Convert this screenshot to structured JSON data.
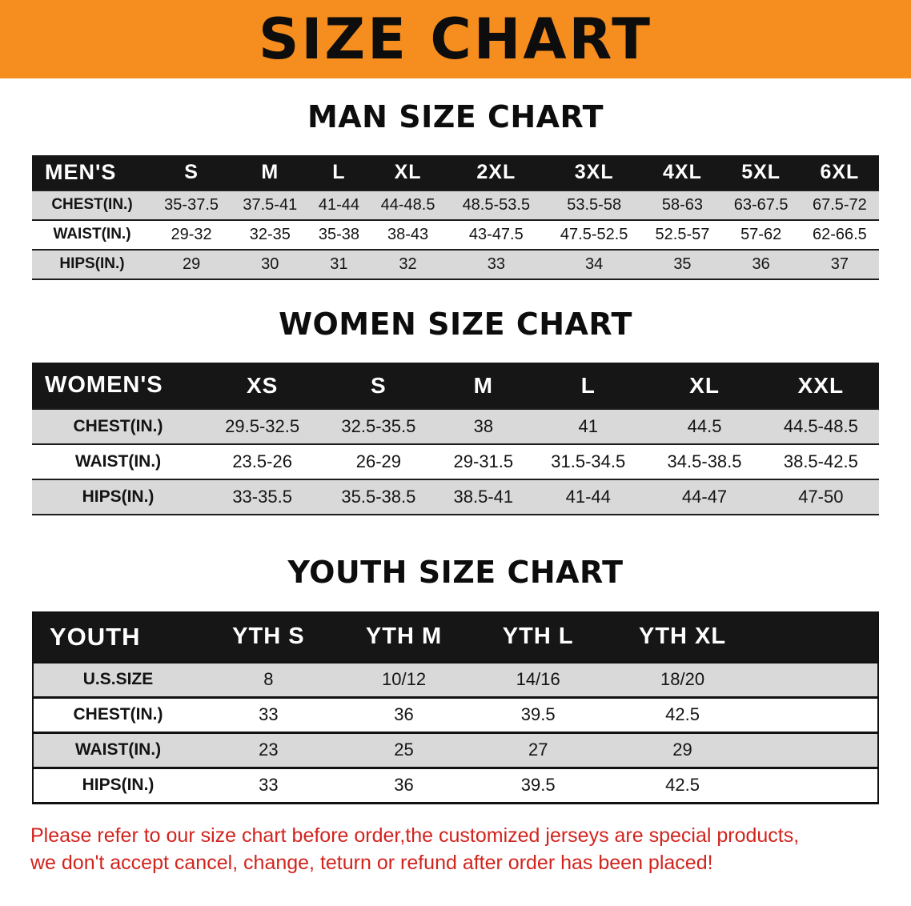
{
  "banner": {
    "title": "SIZE CHART"
  },
  "men": {
    "heading": "MAN SIZE CHART",
    "header": [
      "MEN'S",
      "S",
      "M",
      "L",
      "XL",
      "2XL",
      "3XL",
      "4XL",
      "5XL",
      "6XL"
    ],
    "rows": [
      [
        "CHEST(IN.)",
        "35-37.5",
        "37.5-41",
        "41-44",
        "44-48.5",
        "48.5-53.5",
        "53.5-58",
        "58-63",
        "63-67.5",
        "67.5-72"
      ],
      [
        "WAIST(IN.)",
        "29-32",
        "32-35",
        "35-38",
        "38-43",
        "43-47.5",
        "47.5-52.5",
        "52.5-57",
        "57-62",
        "62-66.5"
      ],
      [
        "HIPS(IN.)",
        "29",
        "30",
        "31",
        "32",
        "33",
        "34",
        "35",
        "36",
        "37"
      ]
    ]
  },
  "women": {
    "heading": "WOMEN SIZE CHART",
    "header": [
      "WOMEN'S",
      "XS",
      "S",
      "M",
      "L",
      "XL",
      "XXL"
    ],
    "rows": [
      [
        "CHEST(IN.)",
        "29.5-32.5",
        "32.5-35.5",
        "38",
        "41",
        "44.5",
        "44.5-48.5"
      ],
      [
        "WAIST(IN.)",
        "23.5-26",
        "26-29",
        "29-31.5",
        "31.5-34.5",
        "34.5-38.5",
        "38.5-42.5"
      ],
      [
        "HIPS(IN.)",
        "33-35.5",
        "35.5-38.5",
        "38.5-41",
        "41-44",
        "44-47",
        "47-50"
      ]
    ]
  },
  "youth": {
    "heading": "YOUTH SIZE CHART",
    "header": [
      "YOUTH",
      "YTH S",
      "YTH M",
      "YTH L",
      "YTH XL"
    ],
    "rows": [
      [
        "U.S.SIZE",
        "8",
        "10/12",
        "14/16",
        "18/20"
      ],
      [
        "CHEST(IN.)",
        "33",
        "36",
        "39.5",
        "42.5"
      ],
      [
        "WAIST(IN.)",
        "23",
        "25",
        "27",
        "29"
      ],
      [
        "HIPS(IN.)",
        "33",
        "36",
        "39.5",
        "42.5"
      ]
    ]
  },
  "disclaimer": {
    "line1": "Please refer to our size chart before order,the customized jerseys are special products,",
    "line2": "we don't accept cancel, change, teturn or refund after order has been placed!"
  },
  "colors": {
    "banner_bg": "#f68d1f",
    "header_bg": "#161616",
    "row_alt": "#d9d9d9",
    "accent_red": "#d2231d"
  }
}
